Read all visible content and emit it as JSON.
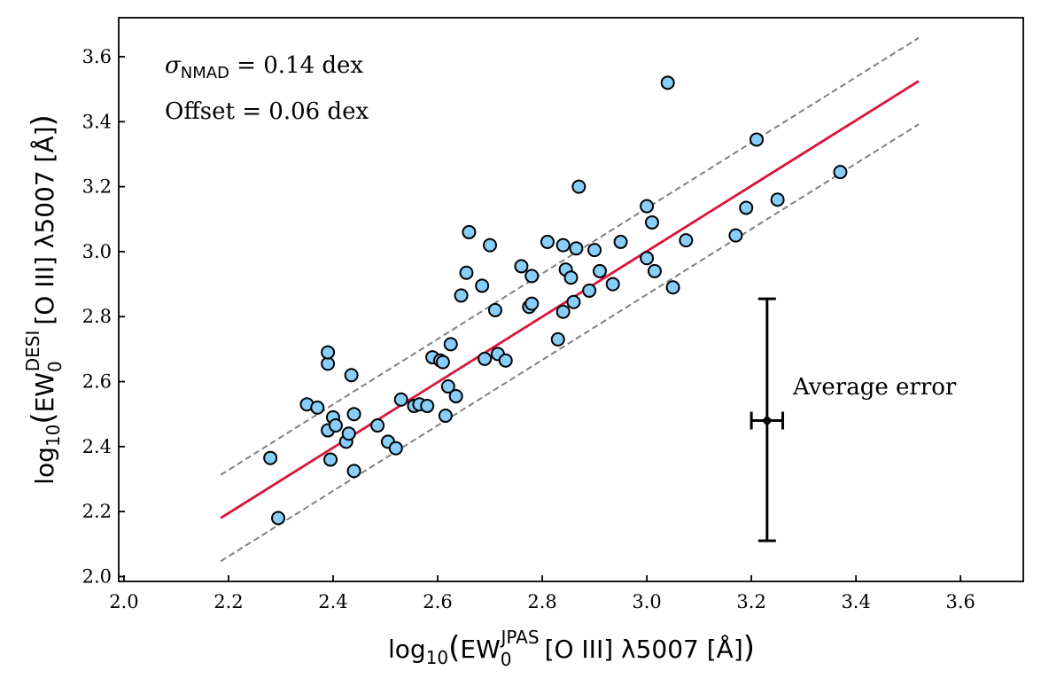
{
  "chart_data": {
    "type": "scatter",
    "xlabel": {
      "prefix": "log",
      "log_sub": "10",
      "quantity": "EW",
      "quantity_sub": "0",
      "quantity_sup": "JPAS",
      "line": "[O III] λ5007 [Å]"
    },
    "ylabel": {
      "prefix": "log",
      "log_sub": "10",
      "quantity": "EW",
      "quantity_sub": "0",
      "quantity_sup": "DESI",
      "line": "[O III] λ5007 [Å]"
    },
    "xlim": [
      1.99,
      3.72
    ],
    "ylim": [
      1.985,
      3.72
    ],
    "xticks": [
      "2.0",
      "2.2",
      "2.4",
      "2.6",
      "2.8",
      "3.0",
      "3.2",
      "3.4",
      "3.6"
    ],
    "yticks": [
      "2.0",
      "2.2",
      "2.4",
      "2.6",
      "2.8",
      "3.0",
      "3.2",
      "3.4",
      "3.6"
    ],
    "annotations": {
      "sigma_symbol": "σ",
      "sigma_sub": "NMAD",
      "sigma_value": " = 0.14 dex",
      "offset": "Offset = 0.06 dex",
      "error_label": "Average error"
    },
    "fit_line": {
      "x": [
        2.185,
        3.52
      ],
      "y": [
        2.18,
        3.525
      ],
      "color": "#dc143c"
    },
    "scatter_band": {
      "offset_dex": 0.133,
      "color": "#808080"
    },
    "average_error": {
      "x": 3.23,
      "y": 2.48,
      "xerr": 0.03,
      "yerr_low": 0.37,
      "yerr_high": 0.375
    },
    "marker": {
      "fill": "#87cefa",
      "edge": "#000000"
    },
    "points": [
      [
        2.28,
        2.365
      ],
      [
        2.295,
        2.18
      ],
      [
        2.35,
        2.53
      ],
      [
        2.37,
        2.52
      ],
      [
        2.39,
        2.45
      ],
      [
        2.39,
        2.655
      ],
      [
        2.39,
        2.69
      ],
      [
        2.395,
        2.36
      ],
      [
        2.4,
        2.49
      ],
      [
        2.405,
        2.465
      ],
      [
        2.425,
        2.415
      ],
      [
        2.43,
        2.44
      ],
      [
        2.435,
        2.62
      ],
      [
        2.44,
        2.5
      ],
      [
        2.44,
        2.325
      ],
      [
        2.485,
        2.465
      ],
      [
        2.505,
        2.415
      ],
      [
        2.52,
        2.395
      ],
      [
        2.53,
        2.545
      ],
      [
        2.555,
        2.525
      ],
      [
        2.565,
        2.53
      ],
      [
        2.58,
        2.525
      ],
      [
        2.59,
        2.675
      ],
      [
        2.605,
        2.665
      ],
      [
        2.61,
        2.66
      ],
      [
        2.615,
        2.495
      ],
      [
        2.62,
        2.585
      ],
      [
        2.625,
        2.715
      ],
      [
        2.635,
        2.555
      ],
      [
        2.645,
        2.865
      ],
      [
        2.655,
        2.935
      ],
      [
        2.66,
        3.06
      ],
      [
        2.685,
        2.895
      ],
      [
        2.69,
        2.67
      ],
      [
        2.7,
        3.02
      ],
      [
        2.71,
        2.82
      ],
      [
        2.715,
        2.685
      ],
      [
        2.73,
        2.665
      ],
      [
        2.76,
        2.955
      ],
      [
        2.775,
        2.83
      ],
      [
        2.78,
        2.84
      ],
      [
        2.78,
        2.925
      ],
      [
        2.81,
        3.03
      ],
      [
        2.83,
        2.73
      ],
      [
        2.84,
        2.815
      ],
      [
        2.84,
        3.02
      ],
      [
        2.845,
        2.945
      ],
      [
        2.855,
        2.92
      ],
      [
        2.86,
        2.845
      ],
      [
        2.865,
        3.01
      ],
      [
        2.87,
        3.2
      ],
      [
        2.89,
        2.88
      ],
      [
        2.9,
        3.005
      ],
      [
        2.91,
        2.94
      ],
      [
        2.935,
        2.9
      ],
      [
        2.95,
        3.03
      ],
      [
        3.0,
        2.98
      ],
      [
        3.0,
        3.14
      ],
      [
        3.01,
        3.09
      ],
      [
        3.015,
        2.94
      ],
      [
        3.04,
        3.52
      ],
      [
        3.05,
        2.89
      ],
      [
        3.075,
        3.035
      ],
      [
        3.17,
        3.05
      ],
      [
        3.19,
        3.135
      ],
      [
        3.21,
        3.345
      ],
      [
        3.25,
        3.16
      ],
      [
        3.37,
        3.245
      ]
    ]
  }
}
